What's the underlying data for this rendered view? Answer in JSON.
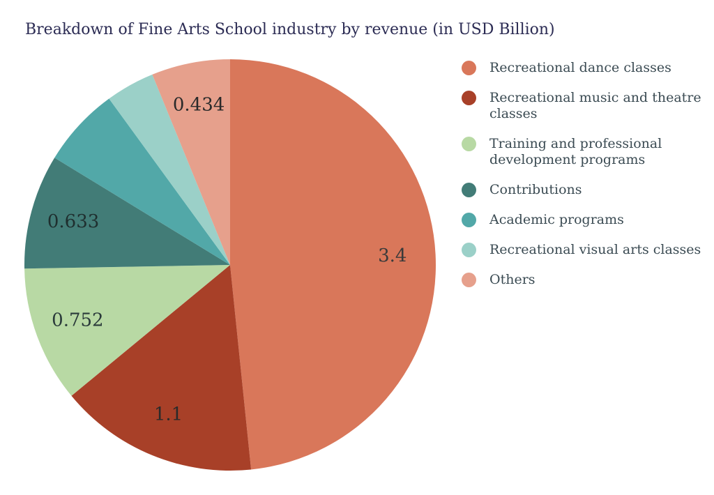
{
  "chart_data": {
    "type": "pie",
    "title": "Breakdown of Fine Arts School industry by revenue (in USD Billion)",
    "slices": [
      {
        "name": "Recreational dance classes",
        "value": 3.4,
        "label": "3.4",
        "color": "#d9775a",
        "label_color": "#3a3a3a"
      },
      {
        "name": "Recreational music and theatre classes",
        "value": 1.1,
        "label": "1.1",
        "color": "#a84028",
        "label_color": "#2a2a2a"
      },
      {
        "name": "Training and professional development programs",
        "value": 0.752,
        "label": "0.752",
        "color": "#b8d9a4",
        "label_color": "#2a3a3a"
      },
      {
        "name": "Contributions",
        "value": 0.633,
        "label": "0.633",
        "color": "#427c77",
        "label_color": "#1f2f2f"
      },
      {
        "name": "Academic programs",
        "value": 0.44,
        "label": "",
        "color": "#52a8a8",
        "label_color": "#1f2f2f"
      },
      {
        "name": "Recreational visual arts classes",
        "value": 0.27,
        "label": "",
        "color": "#9bd0c8",
        "label_color": "#1f2f2f"
      },
      {
        "name": "Others",
        "value": 0.434,
        "label": "0.434",
        "color": "#e6a08c",
        "label_color": "#2a2a2a"
      }
    ],
    "legend_position": "right"
  },
  "legend": [
    {
      "label": "Recreational dance classes",
      "color": "#d9775a"
    },
    {
      "label": "Recreational music and theatre classes",
      "color": "#a84028"
    },
    {
      "label": "Training and professional development programs",
      "color": "#b8d9a4"
    },
    {
      "label": "Contributions",
      "color": "#427c77"
    },
    {
      "label": "Academic programs",
      "color": "#52a8a8"
    },
    {
      "label": "Recreational visual arts classes",
      "color": "#9bd0c8"
    },
    {
      "label": "Others",
      "color": "#e6a08c"
    }
  ]
}
